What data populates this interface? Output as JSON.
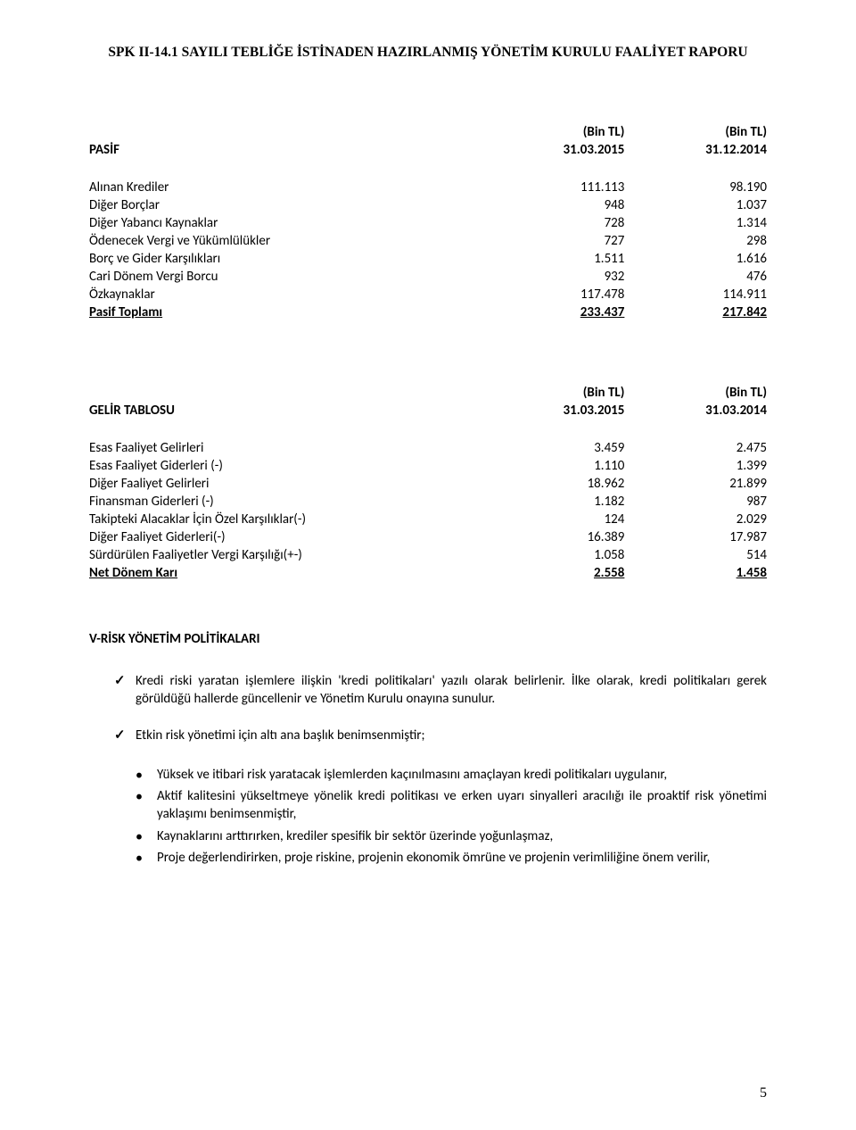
{
  "header": "SPK II-14.1 SAYILI TEBLİĞE İSTİNADEN HAZIRLANMIŞ YÖNETİM KURULU FAALİYET RAPORU",
  "pasif": {
    "title": "PASİF",
    "unit1": "(Bin TL)",
    "unit2": "(Bin TL)",
    "date1": "31.03.2015",
    "date2": "31.12.2014",
    "rows": [
      {
        "label": "Alınan Krediler",
        "v1": "111.113",
        "v2": "98.190"
      },
      {
        "label": "Diğer Borçlar",
        "v1": "948",
        "v2": "1.037"
      },
      {
        "label": "Diğer Yabancı Kaynaklar",
        "v1": "728",
        "v2": "1.314"
      },
      {
        "label": "Ödenecek Vergi ve Yükümlülükler",
        "v1": "727",
        "v2": "298"
      },
      {
        "label": "Borç ve Gider Karşılıkları",
        "v1": "1.511",
        "v2": "1.616"
      },
      {
        "label": "Cari Dönem Vergi Borcu",
        "v1": "932",
        "v2": "476"
      },
      {
        "label": "Özkaynaklar",
        "v1": "117.478",
        "v2": "114.911"
      }
    ],
    "total": {
      "label": "Pasif Toplamı",
      "v1": "233.437",
      "v2": "217.842"
    }
  },
  "gelir": {
    "title": "GELİR TABLOSU",
    "unit1": "(Bin TL)",
    "unit2": "(Bin TL)",
    "date1": "31.03.2015",
    "date2": "31.03.2014",
    "rows": [
      {
        "label": "Esas Faaliyet Gelirleri",
        "v1": "3.459",
        "v2": "2.475"
      },
      {
        "label": "Esas Faaliyet Giderleri (-)",
        "v1": "1.110",
        "v2": "1.399"
      },
      {
        "label": "Diğer Faaliyet Gelirleri",
        "v1": "18.962",
        "v2": "21.899"
      },
      {
        "label": "Finansman Giderleri (-)",
        "v1": "1.182",
        "v2": "987"
      },
      {
        "label": "Takipteki Alacaklar İçin Özel Karşılıklar(-)",
        "v1": "124",
        "v2": "2.029"
      },
      {
        "label": "Diğer Faaliyet Giderleri(-)",
        "v1": "16.389",
        "v2": "17.987"
      },
      {
        "label": "Sürdürülen Faaliyetler Vergi Karşılığı(+-)",
        "v1": "1.058",
        "v2": "514"
      }
    ],
    "total": {
      "label": "Net Dönem Karı",
      "v1": "2.558",
      "v2": "1.458"
    }
  },
  "sectionV": {
    "heading": "V-RİSK YÖNETİM POLİTİKALARI",
    "check1": "Kredi riski yaratan işlemlere ilişkin 'kredi politikaları' yazılı olarak belirlenir. İlke olarak, kredi politikaları gerek görüldüğü hallerde güncellenir ve Yönetim Kurulu onayına sunulur.",
    "check2": "Etkin risk yönetimi için altı ana başlık benimsenmiştir;",
    "bullets": [
      "Yüksek ve itibari risk yaratacak işlemlerden kaçınılmasını amaçlayan kredi politikaları uygulanır,",
      "Aktif kalitesini yükseltmeye yönelik kredi politikası ve erken uyarı sinyalleri aracılığı ile proaktif risk yönetimi yaklaşımı benimsenmiştir,",
      "Kaynaklarını arttırırken, krediler spesifik bir sektör üzerinde yoğunlaşmaz,",
      "Proje değerlendirirken, proje riskine, projenin ekonomik ömrüne ve projenin verimliliğine önem verilir,"
    ]
  },
  "pageNumber": "5"
}
